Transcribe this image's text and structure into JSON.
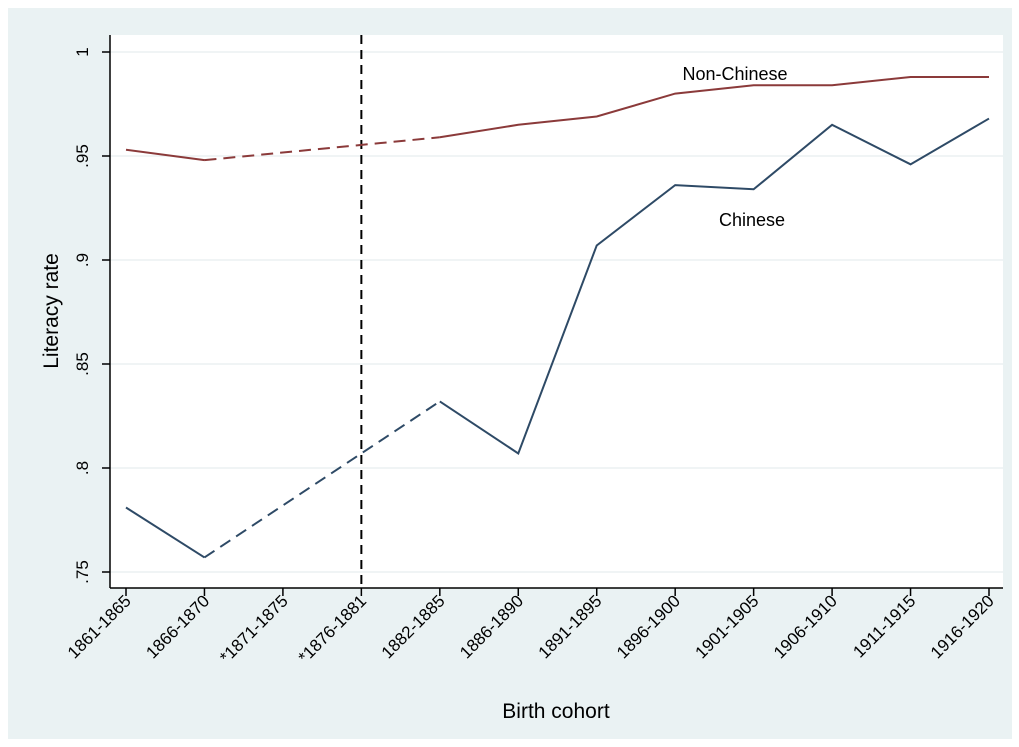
{
  "chart_data": {
    "type": "line",
    "title": "",
    "xlabel": "Birth cohort",
    "ylabel": "Literacy rate",
    "categories": [
      "1861-1865",
      "1866-1870",
      "*1871-1875",
      "*1876-1881",
      "1882-1885",
      "1886-1890",
      "1891-1895",
      "1896-1900",
      "1901-1905",
      "1906-1910",
      "1911-1915",
      "1916-1920"
    ],
    "ylim": [
      0.75,
      1
    ],
    "yticks": [
      0.75,
      0.8,
      0.85,
      0.9,
      0.95,
      1
    ],
    "ytick_labels": [
      ".75",
      ".8",
      ".85",
      ".9",
      ".95",
      "1"
    ],
    "grid": "horizontal",
    "legend": "none",
    "reference_line": {
      "category": "*1876-1881",
      "style": "dashed",
      "color": "#000000"
    },
    "dashed_segment": {
      "from_category": "1866-1870",
      "to_category": "1882-1885"
    },
    "series": [
      {
        "name": "Non-Chinese",
        "color": "#8b3a3a",
        "values": [
          0.953,
          0.948,
          null,
          null,
          0.959,
          0.965,
          0.969,
          0.98,
          0.984,
          0.984,
          0.988,
          0.988
        ]
      },
      {
        "name": "Chinese",
        "color": "#2e4a66",
        "values": [
          0.781,
          0.757,
          null,
          null,
          0.832,
          0.807,
          0.907,
          0.936,
          0.934,
          0.965,
          0.946,
          0.968
        ]
      }
    ]
  }
}
